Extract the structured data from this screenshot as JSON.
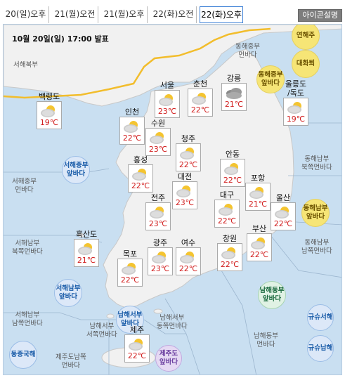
{
  "tabs": [
    {
      "label": "20(일)오후"
    },
    {
      "label": "21(월)오전"
    },
    {
      "label": "21(월)오후"
    },
    {
      "label": "22(화)오전"
    },
    {
      "label": "22(화)오후"
    }
  ],
  "active_tab": 4,
  "icon_legend_button": "아이콘설명",
  "issue_time": "10월 20일(일) 17:00 발표",
  "colors": {
    "sea": "#c9dff1",
    "land": "#f1f1f1",
    "front": "#f2bd2c",
    "temperature": "#d22020"
  },
  "cities": [
    {
      "name": "백령도",
      "temp": "19℃",
      "icon": "partly-cloudy-icon"
    },
    {
      "name": "서울",
      "temp": "23℃",
      "icon": "partly-cloudy-icon"
    },
    {
      "name": "춘천",
      "temp": "22℃",
      "icon": "partly-cloudy-icon"
    },
    {
      "name": "강릉",
      "temp": "21℃",
      "icon": "cloudy-icon"
    },
    {
      "name": "울릉도\n/독도",
      "temp": "19℃",
      "icon": "partly-cloudy-icon"
    },
    {
      "name": "인천",
      "temp": "22℃",
      "icon": "partly-cloudy-icon"
    },
    {
      "name": "수원",
      "temp": "23℃",
      "icon": "partly-cloudy-icon"
    },
    {
      "name": "청주",
      "temp": "22℃",
      "icon": "partly-cloudy-icon"
    },
    {
      "name": "홍성",
      "temp": "22℃",
      "icon": "partly-cloudy-icon"
    },
    {
      "name": "안동",
      "temp": "22℃",
      "icon": "partly-cloudy-icon"
    },
    {
      "name": "대전",
      "temp": "23℃",
      "icon": "partly-cloudy-icon"
    },
    {
      "name": "포항",
      "temp": "21℃",
      "icon": "partly-cloudy-icon"
    },
    {
      "name": "전주",
      "temp": "23℃",
      "icon": "partly-cloudy-icon"
    },
    {
      "name": "대구",
      "temp": "22℃",
      "icon": "partly-cloudy-icon"
    },
    {
      "name": "울산",
      "temp": "22℃",
      "icon": "partly-cloudy-icon"
    },
    {
      "name": "흑산도",
      "temp": "21℃",
      "icon": "partly-cloudy-icon"
    },
    {
      "name": "부산",
      "temp": "22℃",
      "icon": "partly-cloudy-icon"
    },
    {
      "name": "광주",
      "temp": "23℃",
      "icon": "partly-cloudy-icon"
    },
    {
      "name": "여수",
      "temp": "22℃",
      "icon": "partly-cloudy-icon"
    },
    {
      "name": "창원",
      "temp": "22℃",
      "icon": "partly-cloudy-icon"
    },
    {
      "name": "목포",
      "temp": "22℃",
      "icon": "partly-cloudy-icon"
    },
    {
      "name": "제주",
      "temp": "22℃",
      "icon": "partly-cloudy-icon"
    }
  ],
  "sea_regions": [
    "서해북부",
    "동해중부\n먼바다",
    "서해중부\n먼바다",
    "동해남부\n북쪽먼바다",
    "서해남부\n북쪽먼바다",
    "동해남부\n남쪽먼바다",
    "서해남부\n남쪽먼바다",
    "남해서부\n서쪽먼바다",
    "남해서부\n동쪽먼바다",
    "남해동부\n먼바다",
    "제주도남쪽\n먼바다"
  ],
  "coastal_badges": [
    {
      "label": "연해주",
      "style": "yellow"
    },
    {
      "label": "대화퇴",
      "style": "yellow"
    },
    {
      "label": "동해중부\n앞바다",
      "style": "yellow"
    },
    {
      "label": "서해중부\n앞바다",
      "style": "blue"
    },
    {
      "label": "동해남부\n앞바다",
      "style": "yellow"
    },
    {
      "label": "서해남부\n앞바다",
      "style": "blue"
    },
    {
      "label": "남해동부\n앞바다",
      "style": "green"
    },
    {
      "label": "규슈서해",
      "style": "blue"
    },
    {
      "label": "남해서부\n앞바다",
      "style": "blue"
    },
    {
      "label": "규슈남해",
      "style": "blue"
    },
    {
      "label": "동중국해",
      "style": "blue"
    },
    {
      "label": "제주도\n앞바다",
      "style": "purple"
    }
  ]
}
